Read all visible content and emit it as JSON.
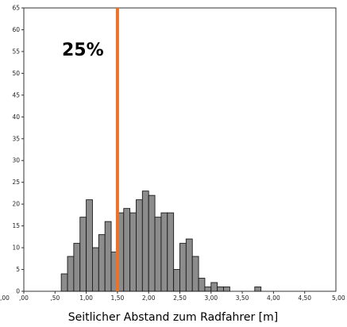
{
  "chart_data": {
    "type": "bar",
    "xlabel": "Seitlicher Abstand zum Radfahrer [m]",
    "annotation": "25%",
    "edge_left_label": ",00",
    "edge_right_label": "5,00",
    "xlim": [
      0,
      5
    ],
    "ylim": [
      0,
      65
    ],
    "bin_width": 0.1,
    "x_ticks": [
      {
        "value": 0.0,
        "label": ",00"
      },
      {
        "value": 0.5,
        "label": ",50"
      },
      {
        "value": 1.0,
        "label": "1,00"
      },
      {
        "value": 1.5,
        "label": "1,50"
      },
      {
        "value": 2.0,
        "label": "2,00"
      },
      {
        "value": 2.5,
        "label": "2,50"
      },
      {
        "value": 3.0,
        "label": "3,00"
      },
      {
        "value": 3.5,
        "label": "3,50"
      },
      {
        "value": 4.0,
        "label": "4,00"
      },
      {
        "value": 4.5,
        "label": "4,50"
      }
    ],
    "y_ticks": [
      {
        "value": 0,
        "label": "0"
      },
      {
        "value": 5,
        "label": "5"
      },
      {
        "value": 10,
        "label": "10"
      },
      {
        "value": 15,
        "label": "15"
      },
      {
        "value": 20,
        "label": "20"
      },
      {
        "value": 25,
        "label": "25"
      },
      {
        "value": 30,
        "label": "30"
      },
      {
        "value": 35,
        "label": "35"
      },
      {
        "value": 40,
        "label": "40"
      },
      {
        "value": 45,
        "label": "45"
      },
      {
        "value": 50,
        "label": "50"
      },
      {
        "value": 55,
        "label": "55"
      },
      {
        "value": 60,
        "label": "60"
      },
      {
        "value": 65,
        "label": "65"
      }
    ],
    "bins": [
      {
        "x": 0.6,
        "y": 4
      },
      {
        "x": 0.7,
        "y": 8
      },
      {
        "x": 0.8,
        "y": 11
      },
      {
        "x": 0.9,
        "y": 17
      },
      {
        "x": 1.0,
        "y": 21
      },
      {
        "x": 1.1,
        "y": 10
      },
      {
        "x": 1.2,
        "y": 13
      },
      {
        "x": 1.3,
        "y": 16
      },
      {
        "x": 1.4,
        "y": 9
      },
      {
        "x": 1.5,
        "y": 18
      },
      {
        "x": 1.6,
        "y": 19
      },
      {
        "x": 1.7,
        "y": 18
      },
      {
        "x": 1.8,
        "y": 21
      },
      {
        "x": 1.9,
        "y": 23
      },
      {
        "x": 2.0,
        "y": 22
      },
      {
        "x": 2.1,
        "y": 17
      },
      {
        "x": 2.2,
        "y": 18
      },
      {
        "x": 2.3,
        "y": 18
      },
      {
        "x": 2.4,
        "y": 5
      },
      {
        "x": 2.5,
        "y": 11
      },
      {
        "x": 2.6,
        "y": 12
      },
      {
        "x": 2.7,
        "y": 8
      },
      {
        "x": 2.8,
        "y": 3
      },
      {
        "x": 2.9,
        "y": 1
      },
      {
        "x": 3.0,
        "y": 2
      },
      {
        "x": 3.1,
        "y": 1
      },
      {
        "x": 3.2,
        "y": 1
      },
      {
        "x": 3.7,
        "y": 1
      }
    ],
    "marker_line": {
      "x": 1.5,
      "color": "#e8732a"
    },
    "bar_color": "#8c8c8c",
    "bar_stroke": "#1a1a1a"
  }
}
